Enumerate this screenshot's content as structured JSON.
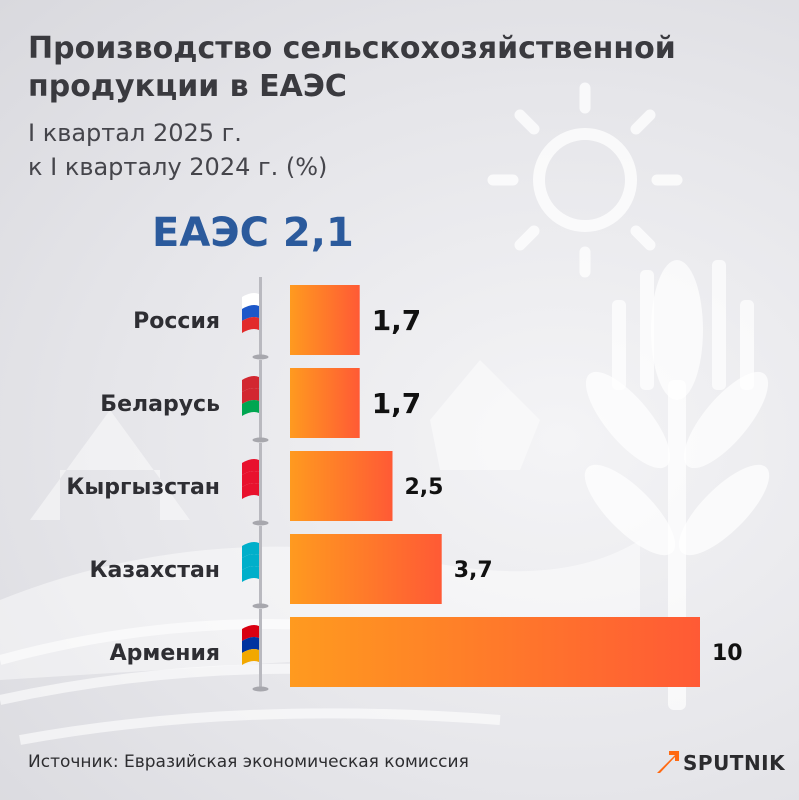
{
  "header": {
    "title": "Производство сельскохозяйственной продукции в ЕАЭС",
    "subtitle_line1": "I квартал 2025 г.",
    "subtitle_line2": "к I кварталу 2024 г. (%)",
    "eaeu_total": "ЕАЭС 2,1"
  },
  "chart_data": {
    "type": "bar",
    "orientation": "horizontal",
    "categories": [
      "Россия",
      "Беларусь",
      "Кыргызстан",
      "Казахстан",
      "Армения"
    ],
    "values": [
      1.7,
      1.7,
      2.5,
      3.7,
      10
    ],
    "value_labels": [
      "1,7",
      "1,7",
      "2,5",
      "3,7",
      "10"
    ],
    "flags": [
      "russia-flag-icon",
      "belarus-flag-icon",
      "kyrgyzstan-flag-icon",
      "kazakhstan-flag-icon",
      "armenia-flag-icon"
    ],
    "xlim": [
      0,
      10
    ],
    "bar_gradient": [
      "#ff9a1f",
      "#ff5a35"
    ],
    "title": "",
    "xlabel": "",
    "ylabel": "",
    "grid": false,
    "legend": "none"
  },
  "footer": {
    "source": "Источник: Евразийская экономическая комиссия",
    "logo_text": "SPUTNIK",
    "logo_icon": "sputnik-arrow-icon",
    "logo_color": "#ff6a13"
  }
}
